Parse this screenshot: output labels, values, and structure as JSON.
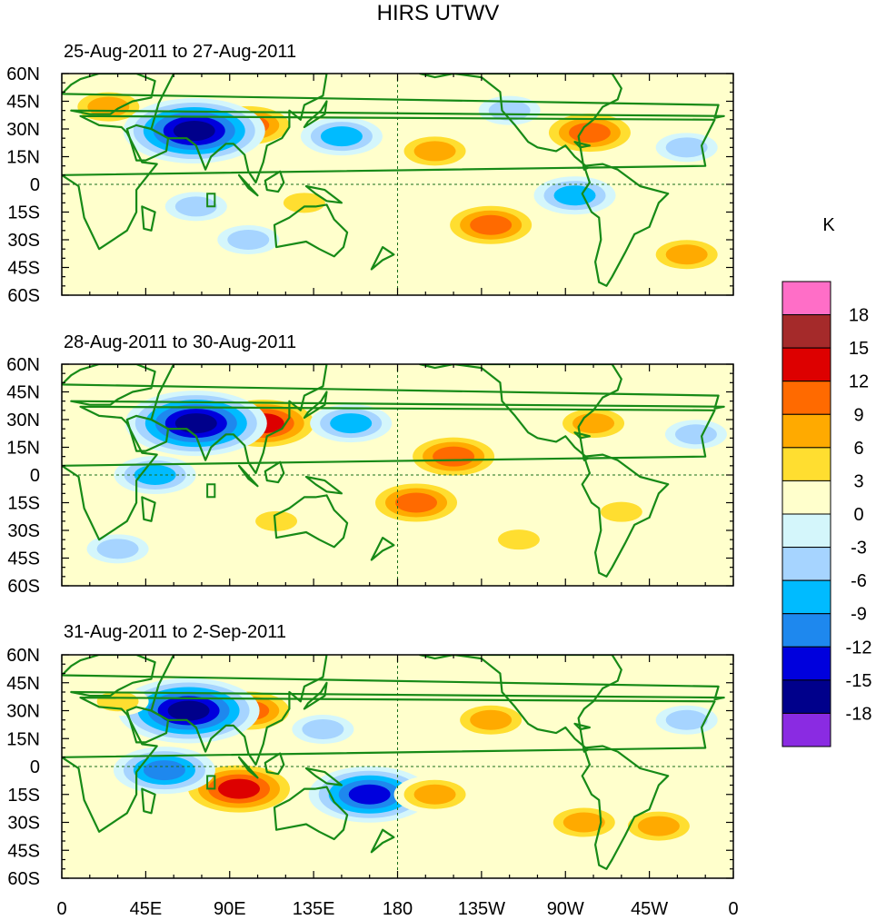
{
  "chart_data": {
    "type": "heatmap",
    "title": "HIRS UTWV",
    "panels": [
      {
        "subtitle": "25-Aug-2011 to 27-Aug-2011"
      },
      {
        "subtitle": "28-Aug-2011 to 30-Aug-2011"
      },
      {
        "subtitle": "31-Aug-2011 to 2-Sep-2011"
      }
    ],
    "lat_ticks": [
      "60N",
      "45N",
      "30N",
      "15N",
      "0",
      "15S",
      "30S",
      "45S",
      "60S"
    ],
    "lon_ticks": [
      "0",
      "45E",
      "90E",
      "135E",
      "180",
      "135W",
      "90W",
      "45W",
      "0"
    ],
    "lat_range": [
      -60,
      60
    ],
    "lon_range": [
      0,
      360
    ],
    "colorbar": {
      "unit": "K",
      "levels": [
        "18",
        "15",
        "12",
        "9",
        "6",
        "3",
        "0",
        "-3",
        "-6",
        "-9",
        "-12",
        "-15",
        "-18"
      ],
      "colors": [
        "#ff6ec7",
        "#a52a2a",
        "#dd0000",
        "#ff6a00",
        "#ffaa00",
        "#ffde30",
        "#ffffcc",
        "#d4f6fb",
        "#a6d4ff",
        "#00bbff",
        "#1e88ee",
        "#0000dd",
        "#00008b",
        "#8a2be2"
      ]
    },
    "features": [
      {
        "panel": 0,
        "lon": 100,
        "lat": 32,
        "value": 11
      },
      {
        "panel": 0,
        "lon": 25,
        "lat": 42,
        "value": 7
      },
      {
        "panel": 0,
        "lon": 71,
        "lat": 29,
        "value": -16
      },
      {
        "panel": 0,
        "lon": 150,
        "lat": 26,
        "value": -7
      },
      {
        "panel": 0,
        "lon": 200,
        "lat": 18,
        "value": 8
      },
      {
        "panel": 0,
        "lon": 230,
        "lat": -22,
        "value": 10
      },
      {
        "panel": 0,
        "lon": 130,
        "lat": -10,
        "value": 6
      },
      {
        "panel": 0,
        "lon": 72,
        "lat": -12,
        "value": -6
      },
      {
        "panel": 0,
        "lon": 275,
        "lat": -6,
        "value": -8
      },
      {
        "panel": 0,
        "lon": 283,
        "lat": 28,
        "value": 10
      },
      {
        "panel": 0,
        "lon": 335,
        "lat": -38,
        "value": 8
      },
      {
        "panel": 0,
        "lon": 335,
        "lat": 20,
        "value": -5
      },
      {
        "panel": 0,
        "lon": 240,
        "lat": 40,
        "value": -5
      },
      {
        "panel": 0,
        "lon": 100,
        "lat": -30,
        "value": -4
      },
      {
        "panel": 1,
        "lon": 108,
        "lat": 28,
        "value": 13
      },
      {
        "panel": 1,
        "lon": 72,
        "lat": 28,
        "value": -16
      },
      {
        "panel": 1,
        "lon": 210,
        "lat": 10,
        "value": 12
      },
      {
        "panel": 1,
        "lon": 190,
        "lat": -15,
        "value": 12
      },
      {
        "panel": 1,
        "lon": 285,
        "lat": 28,
        "value": 9
      },
      {
        "panel": 1,
        "lon": 300,
        "lat": -20,
        "value": 6
      },
      {
        "panel": 1,
        "lon": 155,
        "lat": 28,
        "value": -7
      },
      {
        "panel": 1,
        "lon": 50,
        "lat": 0,
        "value": -7
      },
      {
        "panel": 1,
        "lon": 115,
        "lat": -25,
        "value": 5
      },
      {
        "panel": 1,
        "lon": 245,
        "lat": -35,
        "value": 5
      },
      {
        "panel": 1,
        "lon": 340,
        "lat": 22,
        "value": -5
      },
      {
        "panel": 1,
        "lon": 30,
        "lat": -40,
        "value": -6
      },
      {
        "panel": 2,
        "lon": 100,
        "lat": 30,
        "value": 12
      },
      {
        "panel": 2,
        "lon": 68,
        "lat": 30,
        "value": -16
      },
      {
        "panel": 2,
        "lon": 95,
        "lat": -12,
        "value": 13
      },
      {
        "panel": 2,
        "lon": 55,
        "lat": -2,
        "value": -10
      },
      {
        "panel": 2,
        "lon": 165,
        "lat": -15,
        "value": -15
      },
      {
        "panel": 2,
        "lon": 230,
        "lat": 25,
        "value": 9
      },
      {
        "panel": 2,
        "lon": 200,
        "lat": -15,
        "value": 7
      },
      {
        "panel": 2,
        "lon": 280,
        "lat": -30,
        "value": 8
      },
      {
        "panel": 2,
        "lon": 320,
        "lat": -32,
        "value": 9
      },
      {
        "panel": 2,
        "lon": 140,
        "lat": 20,
        "value": -6
      },
      {
        "panel": 2,
        "lon": 30,
        "lat": 35,
        "value": 6
      },
      {
        "panel": 2,
        "lon": 335,
        "lat": 25,
        "value": -5
      }
    ]
  }
}
